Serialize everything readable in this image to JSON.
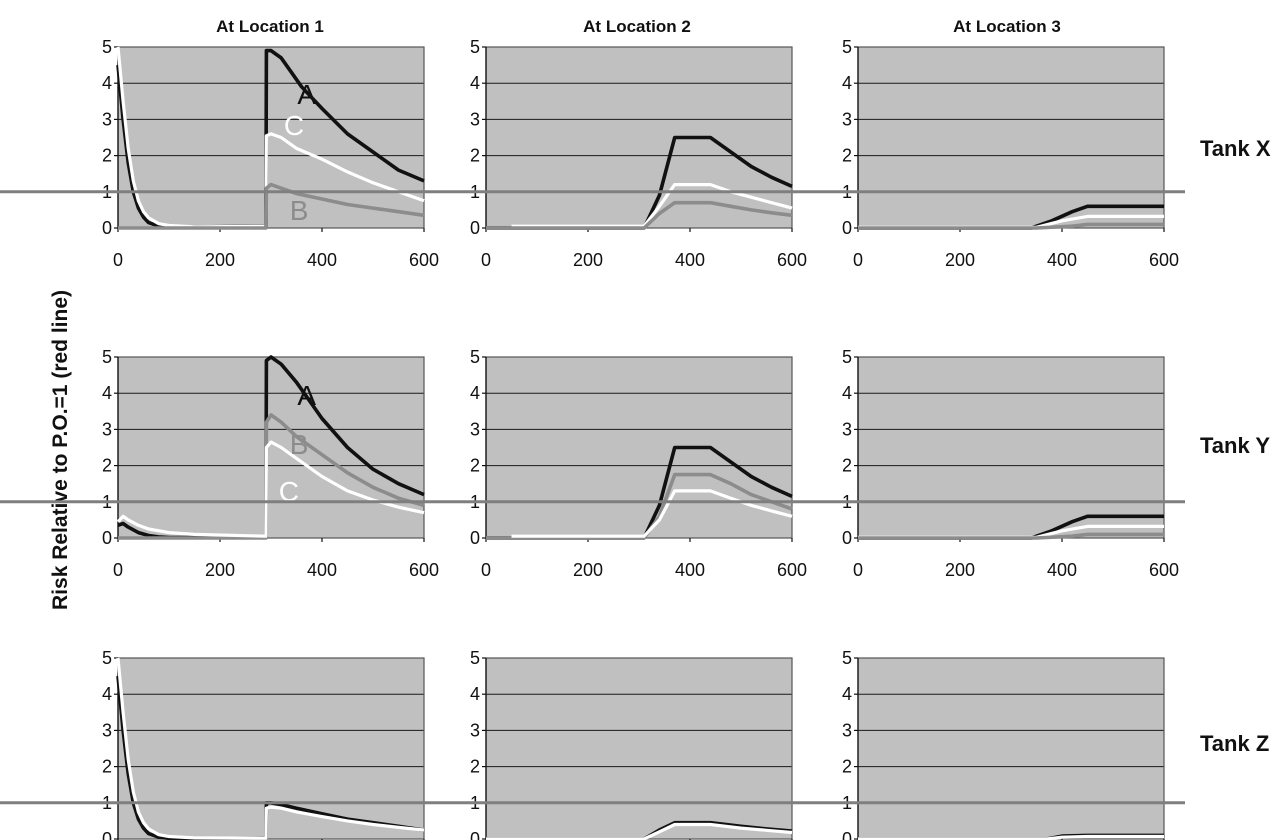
{
  "chart_data": {
    "type": "line",
    "ylabel": "Risk Relative to P.O.=1 (red line)",
    "column_titles": [
      "At Location 1",
      "At Location 2",
      "At Location 3"
    ],
    "row_labels": [
      "Tank X",
      "Tank Y",
      "Tank Z"
    ],
    "xlim": [
      0,
      600
    ],
    "ylim": [
      0,
      5
    ],
    "x_ticks": [
      "0",
      "200",
      "400",
      "600"
    ],
    "y_ticks": [
      "0",
      "1",
      "2",
      "3",
      "4",
      "5"
    ],
    "grid": true,
    "reference_line": 1,
    "colors": {
      "A": "#111111",
      "B": "#8c8c8c",
      "C": "#ffffff",
      "ref": "#7f7f7f",
      "plot_bg": "#c0c0c0"
    },
    "panels": [
      {
        "row": 0,
        "col": 0,
        "series": [
          {
            "name": "A",
            "x": [
              0,
              10,
              20,
              30,
              40,
              50,
              60,
              80,
              100,
              290,
              291,
              300,
              320,
              340,
              360,
              380,
              400,
              450,
              500,
              550,
              600
            ],
            "y": [
              4.5,
              3.0,
              1.8,
              1.0,
              0.55,
              0.3,
              0.15,
              0.05,
              0.02,
              0.05,
              4.9,
              4.9,
              4.7,
              4.3,
              3.9,
              3.6,
              3.3,
              2.6,
              2.1,
              1.6,
              1.3
            ]
          },
          {
            "name": "C",
            "x": [
              0,
              10,
              20,
              30,
              40,
              50,
              60,
              80,
              100,
              150,
              290,
              291,
              300,
              320,
              350,
              400,
              450,
              500,
              550,
              600
            ],
            "y": [
              5.0,
              3.5,
              2.2,
              1.3,
              0.75,
              0.45,
              0.28,
              0.12,
              0.07,
              0.03,
              0.05,
              2.55,
              2.6,
              2.5,
              2.2,
              1.9,
              1.55,
              1.25,
              1.0,
              0.75
            ]
          },
          {
            "name": "B",
            "x": [
              0,
              290,
              291,
              300,
              320,
              350,
              400,
              450,
              500,
              550,
              600
            ],
            "y": [
              0.0,
              0.0,
              1.1,
              1.2,
              1.1,
              0.95,
              0.8,
              0.65,
              0.55,
              0.45,
              0.35
            ]
          }
        ],
        "labels": [
          {
            "text": "A",
            "x": 370,
            "y": 3.7
          },
          {
            "text": "C",
            "x": 345,
            "y": 2.85
          },
          {
            "text": "B",
            "x": 355,
            "y": 0.5
          }
        ]
      },
      {
        "row": 0,
        "col": 1,
        "series": [
          {
            "name": "A",
            "x": [
              0,
              310,
              340,
              370,
              440,
              480,
              520,
              560,
              600
            ],
            "y": [
              0.0,
              0.0,
              0.9,
              2.5,
              2.5,
              2.1,
              1.7,
              1.4,
              1.15
            ]
          },
          {
            "name": "C",
            "x": [
              50,
              310,
              340,
              370,
              440,
              480,
              520,
              560,
              600
            ],
            "y": [
              0.05,
              0.05,
              0.6,
              1.2,
              1.2,
              1.0,
              0.85,
              0.7,
              0.55
            ]
          },
          {
            "name": "B",
            "x": [
              0,
              310,
              340,
              370,
              440,
              480,
              520,
              560,
              600
            ],
            "y": [
              0.0,
              0.0,
              0.4,
              0.7,
              0.7,
              0.6,
              0.5,
              0.42,
              0.35
            ]
          }
        ]
      },
      {
        "row": 0,
        "col": 2,
        "series": [
          {
            "name": "A",
            "x": [
              0,
              340,
              380,
              420,
              450,
              600
            ],
            "y": [
              0.0,
              0.0,
              0.2,
              0.45,
              0.6,
              0.6
            ]
          },
          {
            "name": "C",
            "x": [
              0,
              350,
              400,
              450,
              600
            ],
            "y": [
              0.02,
              0.02,
              0.2,
              0.32,
              0.32
            ]
          },
          {
            "name": "B",
            "x": [
              0,
              350,
              420,
              450,
              600
            ],
            "y": [
              0.0,
              0.0,
              0.05,
              0.1,
              0.1
            ]
          }
        ]
      },
      {
        "row": 1,
        "col": 0,
        "series": [
          {
            "name": "A",
            "x": [
              0,
              10,
              20,
              40,
              60,
              80,
              100,
              290,
              291,
              300,
              320,
              350,
              400,
              450,
              500,
              550,
              600
            ],
            "y": [
              0.35,
              0.4,
              0.3,
              0.15,
              0.07,
              0.03,
              0.01,
              0.01,
              4.9,
              5.0,
              4.8,
              4.3,
              3.3,
              2.5,
              1.9,
              1.5,
              1.2
            ]
          },
          {
            "name": "B",
            "x": [
              0,
              290,
              291,
              300,
              320,
              350,
              400,
              450,
              500,
              550,
              600
            ],
            "y": [
              0.0,
              0.0,
              3.2,
              3.4,
              3.2,
              2.8,
              2.3,
              1.8,
              1.4,
              1.1,
              0.9
            ]
          },
          {
            "name": "C",
            "x": [
              0,
              10,
              20,
              40,
              60,
              100,
              150,
              290,
              291,
              300,
              320,
              350,
              400,
              450,
              500,
              550,
              600
            ],
            "y": [
              0.45,
              0.6,
              0.5,
              0.35,
              0.25,
              0.15,
              0.1,
              0.05,
              2.5,
              2.65,
              2.5,
              2.2,
              1.7,
              1.3,
              1.05,
              0.85,
              0.7
            ]
          }
        ],
        "labels": [
          {
            "text": "A",
            "x": 370,
            "y": 3.95
          },
          {
            "text": "B",
            "x": 355,
            "y": 2.6
          },
          {
            "text": "C",
            "x": 335,
            "y": 1.3
          }
        ]
      },
      {
        "row": 1,
        "col": 1,
        "series": [
          {
            "name": "A",
            "x": [
              0,
              310,
              340,
              370,
              440,
              480,
              520,
              560,
              600
            ],
            "y": [
              0.0,
              0.0,
              0.9,
              2.5,
              2.5,
              2.1,
              1.7,
              1.4,
              1.15
            ]
          },
          {
            "name": "B",
            "x": [
              0,
              310,
              340,
              370,
              440,
              480,
              520,
              560,
              600
            ],
            "y": [
              0.0,
              0.0,
              0.6,
              1.75,
              1.75,
              1.5,
              1.2,
              1.0,
              0.8
            ]
          },
          {
            "name": "C",
            "x": [
              50,
              310,
              340,
              370,
              440,
              480,
              520,
              560,
              600
            ],
            "y": [
              0.05,
              0.05,
              0.5,
              1.3,
              1.3,
              1.1,
              0.9,
              0.75,
              0.6
            ]
          }
        ]
      },
      {
        "row": 1,
        "col": 2,
        "series": [
          {
            "name": "A",
            "x": [
              0,
              340,
              380,
              420,
              450,
              600
            ],
            "y": [
              0.0,
              0.0,
              0.2,
              0.45,
              0.6,
              0.6
            ]
          },
          {
            "name": "C",
            "x": [
              0,
              350,
              400,
              450,
              600
            ],
            "y": [
              0.02,
              0.02,
              0.2,
              0.32,
              0.32
            ]
          },
          {
            "name": "B",
            "x": [
              0,
              350,
              420,
              450,
              600
            ],
            "y": [
              0.0,
              0.0,
              0.05,
              0.1,
              0.1
            ]
          }
        ]
      },
      {
        "row": 2,
        "col": 0,
        "series": [
          {
            "name": "A",
            "x": [
              0,
              10,
              20,
              30,
              40,
              50,
              60,
              80,
              100,
              290,
              291,
              300,
              320,
              350,
              400,
              450,
              500,
              550,
              600
            ],
            "y": [
              4.5,
              3.0,
              1.8,
              1.0,
              0.55,
              0.3,
              0.15,
              0.05,
              0.02,
              0.02,
              1.0,
              1.0,
              0.95,
              0.85,
              0.7,
              0.55,
              0.45,
              0.35,
              0.25
            ]
          },
          {
            "name": "C",
            "x": [
              0,
              10,
              20,
              30,
              40,
              50,
              60,
              80,
              100,
              150,
              290,
              291,
              300,
              320,
              350,
              400,
              450,
              500,
              550,
              600
            ],
            "y": [
              5.0,
              3.5,
              2.2,
              1.3,
              0.75,
              0.45,
              0.28,
              0.12,
              0.07,
              0.03,
              0.02,
              0.85,
              0.88,
              0.85,
              0.75,
              0.62,
              0.5,
              0.4,
              0.32,
              0.25
            ]
          }
        ]
      },
      {
        "row": 2,
        "col": 1,
        "series": [
          {
            "name": "A",
            "x": [
              0,
              310,
              340,
              370,
              440,
              500,
              550,
              600
            ],
            "y": [
              0.0,
              0.0,
              0.25,
              0.45,
              0.45,
              0.35,
              0.28,
              0.22
            ]
          },
          {
            "name": "C",
            "x": [
              0,
              310,
              340,
              370,
              440,
              500,
              550,
              600
            ],
            "y": [
              0.0,
              0.0,
              0.2,
              0.4,
              0.4,
              0.3,
              0.24,
              0.18
            ]
          }
        ]
      },
      {
        "row": 2,
        "col": 2,
        "series": [
          {
            "name": "A",
            "x": [
              0,
              370,
              400,
              450,
              600
            ],
            "y": [
              0.0,
              0.0,
              0.08,
              0.1,
              0.1
            ]
          },
          {
            "name": "C",
            "x": [
              0,
              370,
              400,
              450,
              600
            ],
            "y": [
              0.0,
              0.0,
              0.05,
              0.07,
              0.07
            ]
          }
        ]
      }
    ]
  }
}
